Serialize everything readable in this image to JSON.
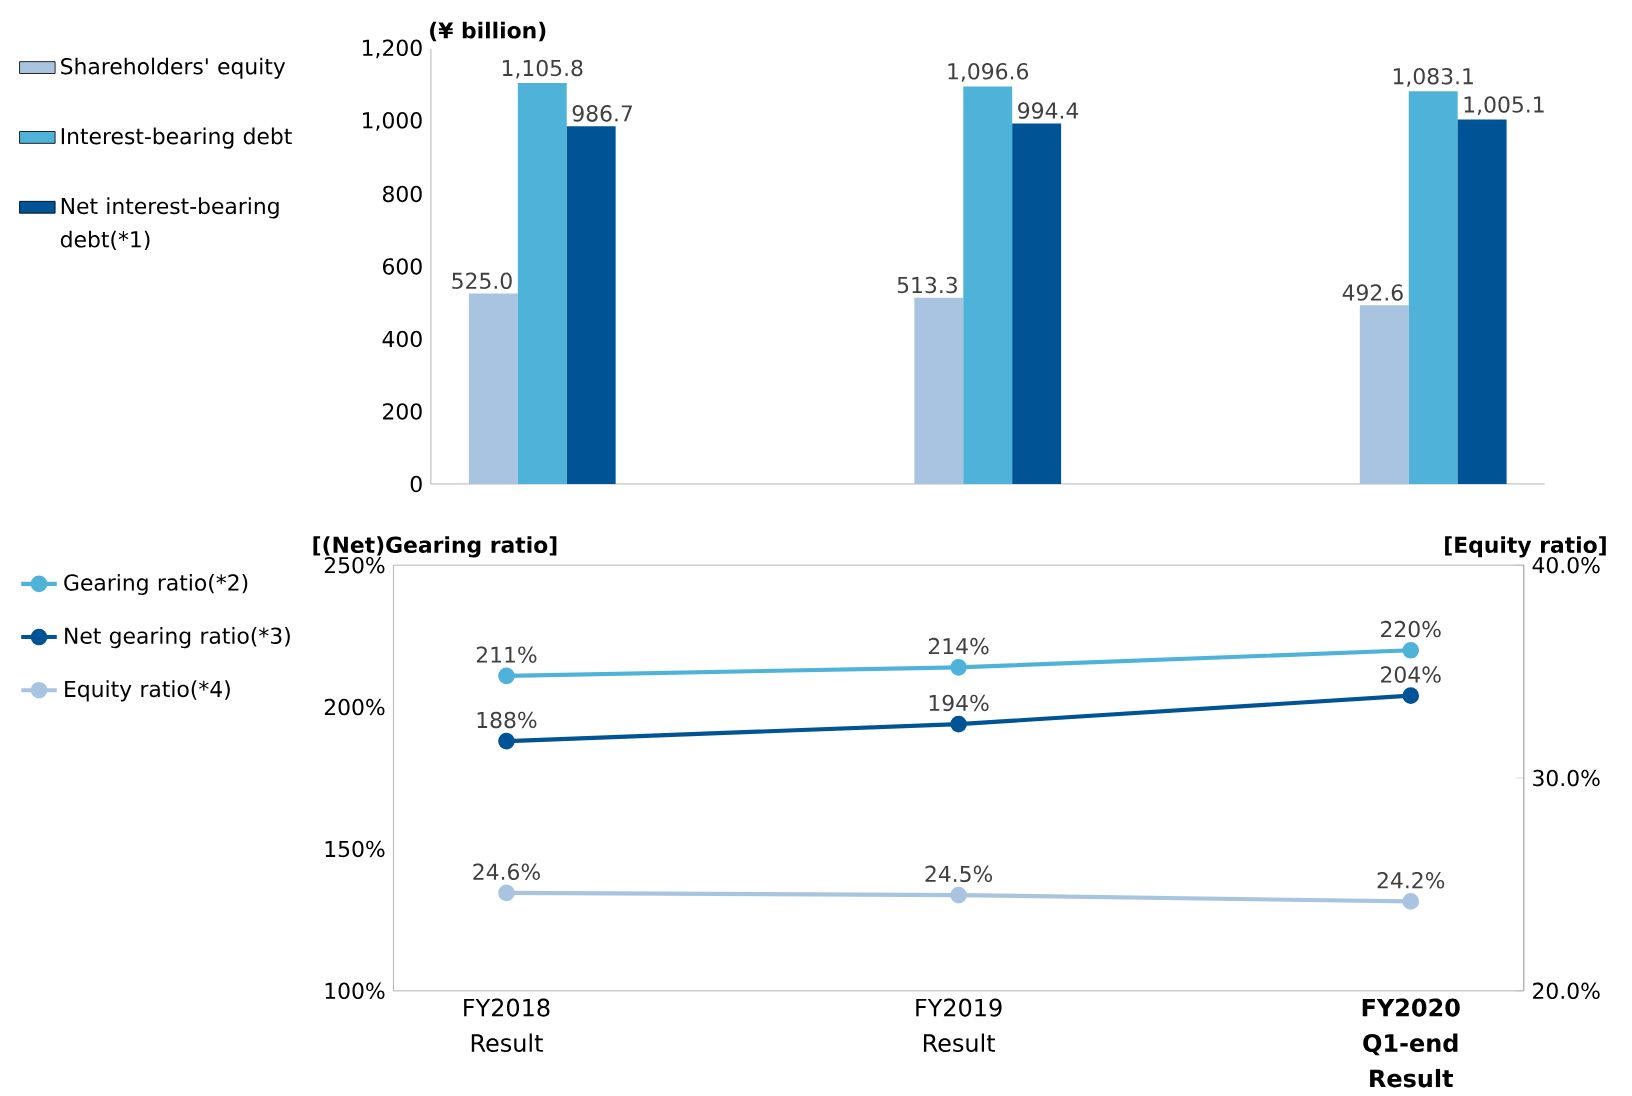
{
  "chart_data": [
    {
      "type": "bar",
      "ylabel": "(¥ billion)",
      "categories": [
        null,
        null,
        null
      ],
      "tick_labels": "y",
      "ylim": [
        0,
        1200
      ],
      "yticks": [
        0,
        200,
        400,
        600,
        800,
        {
          "value": 1000,
          "label": "1,000"
        },
        {
          "value": 1200,
          "label": "1,200"
        }
      ],
      "legend": "left",
      "series": [
        {
          "name": "Shareholders' equity",
          "color": "#a9c4e0",
          "values": [
            525.0,
            513.3,
            492.6
          ],
          "value_labels": [
            "525.0",
            "513.3",
            "492.6"
          ]
        },
        {
          "name": "Interest-bearing debt",
          "color": "#4fb3d9",
          "values": [
            1105.8,
            1096.6,
            1083.1
          ],
          "value_labels": [
            "1,105.8",
            "1,096.6",
            "1,083.1"
          ]
        },
        {
          "name": "Net interest-bearing debt(*1)",
          "color": "#005496",
          "values": [
            986.7,
            994.4,
            1005.1
          ],
          "value_labels": [
            "986.7",
            "994.4",
            "1,005.1"
          ]
        }
      ]
    },
    {
      "type": "line",
      "ylabel": "[(Net)Gearing ratio]",
      "y2label": "[Equity ratio]",
      "categories": [
        "FY2018 Result",
        "FY2019 Result",
        "**FY2020 Q1-end Result**"
      ],
      "ylim": [
        100,
        250
      ],
      "yticks": [
        {
          "value": 100,
          "label": "100%"
        },
        {
          "value": 150,
          "label": "150%"
        },
        {
          "value": 200,
          "label": "200%"
        },
        {
          "value": 250,
          "label": "250%"
        }
      ],
      "y2lim": [
        20,
        40
      ],
      "y2ticks": [
        {
          "value": 20,
          "label": "20.0%"
        },
        {
          "value": 30,
          "label": "30.0%"
        },
        {
          "value": 40,
          "label": "40.0%"
        }
      ],
      "marker": "circle",
      "legend": "left",
      "series": [
        {
          "name": "Gearing ratio(*2)",
          "color": "#4fb3d9",
          "values": [
            211,
            214,
            220
          ],
          "value_labels": [
            "211%",
            "214%",
            "220%"
          ]
        },
        {
          "name": "Net gearing ratio(*3)",
          "color": "#005496",
          "values": [
            188,
            194,
            204
          ],
          "value_labels": [
            "188%",
            "194%",
            "204%"
          ]
        },
        {
          "name": "Equity ratio(*4)",
          "color": "#a9c4e0",
          "axis": "y2",
          "values": [
            24.6,
            24.5,
            24.2
          ],
          "value_labels": [
            "24.6%",
            "24.5%",
            "24.2%"
          ]
        }
      ]
    }
  ]
}
